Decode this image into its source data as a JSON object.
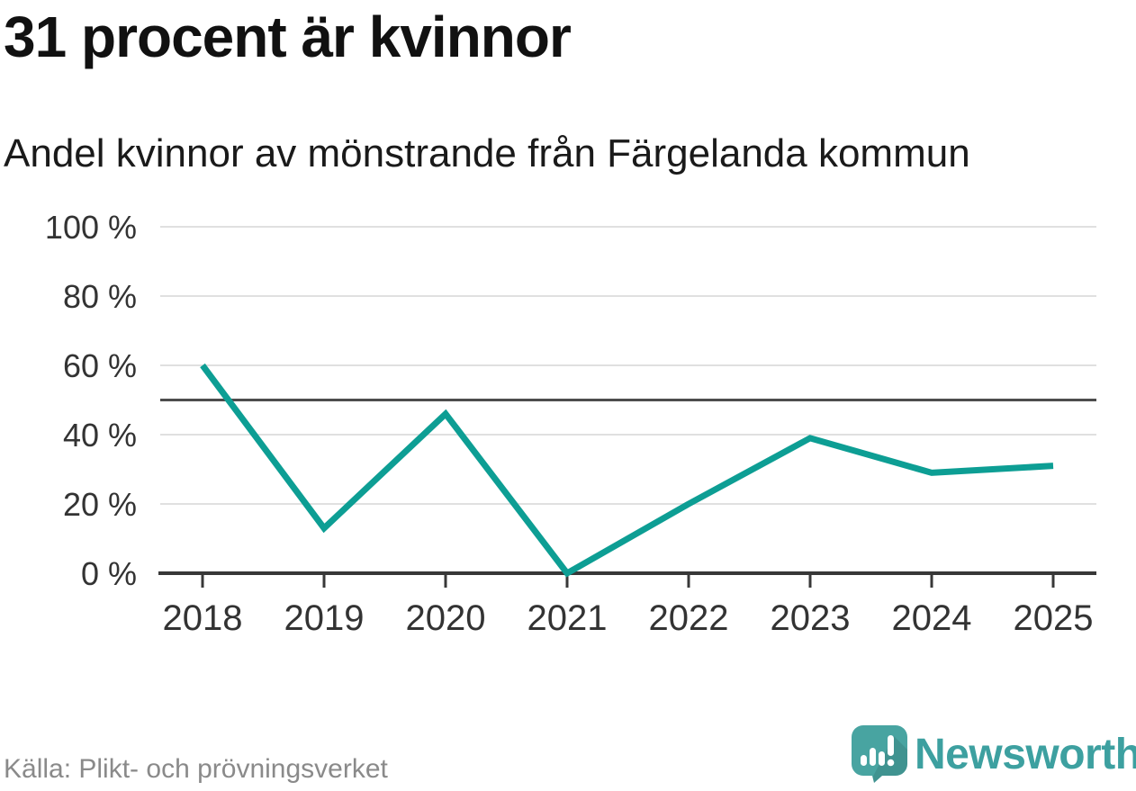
{
  "header": {
    "title": "31 procent är kvinnor",
    "subtitle": "Andel kvinnor av mönstrande från Färgelanda kommun"
  },
  "footer": {
    "source": "Källa: Plikt- och prövningsverket",
    "brand": "Newsworthy"
  },
  "colors": {
    "line": "#0d9e94",
    "grid": "#e0e0e0",
    "refline": "#4d4d4d",
    "axis": "#383838",
    "tick_label": "#333333",
    "title": "#111111",
    "source": "#8a8a8a",
    "brand_text": "#3da0a0",
    "logo_bubble": "#48a4a1"
  },
  "chart_data": {
    "type": "line",
    "title": "31 procent är kvinnor",
    "subtitle": "Andel kvinnor av mönstrande från Färgelanda kommun",
    "x": [
      2018,
      2019,
      2020,
      2021,
      2022,
      2023,
      2024,
      2025
    ],
    "series": [
      {
        "name": "Andel kvinnor av mönstrande",
        "values": [
          60,
          13,
          46,
          0,
          20,
          39,
          29,
          31
        ]
      }
    ],
    "unit": "%",
    "ylim": [
      0,
      100
    ],
    "y_ticks": [
      0,
      20,
      40,
      60,
      80,
      100
    ],
    "y_tick_labels": [
      "0 %",
      "20 %",
      "40 %",
      "60 %",
      "80 %",
      "100 %"
    ],
    "refline": {
      "value": 50
    },
    "grid": true,
    "legend": "none",
    "xlabel": "",
    "ylabel": ""
  }
}
